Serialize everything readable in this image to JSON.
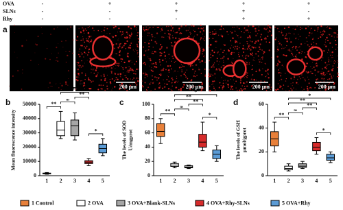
{
  "header": {
    "rows": [
      {
        "label": "OVA",
        "marks": [
          "-",
          "+",
          "+",
          "+",
          "+"
        ]
      },
      {
        "label": "SLNs",
        "marks": [
          "-",
          "-",
          "+",
          "+",
          "-"
        ]
      },
      {
        "label": "Rhy",
        "marks": [
          "-",
          "-",
          "-",
          "+",
          "+"
        ]
      }
    ]
  },
  "images": {
    "panel": "a",
    "scale_labels": [
      null,
      "200 μm",
      "200 μm",
      "200 μm",
      "200 μm"
    ]
  },
  "chart_data": [
    {
      "type": "box",
      "panel": "b",
      "ylabel": [
        "Mean fluorescence intensity"
      ],
      "categories": [
        "1",
        "2",
        "3",
        "4",
        "5"
      ],
      "colors": [
        "#e8803a",
        "#ffffff",
        "#a6a6a6",
        "#d62b2b",
        "#5b9bd5"
      ],
      "boxes": [
        {
          "min": 1000,
          "q1": 1300,
          "median": 1500,
          "q3": 1800,
          "max": 2200
        },
        {
          "min": 26000,
          "q1": 28000,
          "median": 32000,
          "q3": 38000,
          "max": 45000
        },
        {
          "min": 25000,
          "q1": 28000,
          "median": 35000,
          "q3": 39000,
          "max": 44000
        },
        {
          "min": 7000,
          "q1": 8500,
          "median": 9500,
          "q3": 10500,
          "max": 12000
        },
        {
          "min": 14000,
          "q1": 16000,
          "median": 19000,
          "q3": 22000,
          "max": 26000
        }
      ],
      "ylim": [
        0,
        50000
      ],
      "yticks": [
        0,
        10000,
        20000,
        30000,
        40000,
        50000
      ],
      "annotations": [
        {
          "label": "*",
          "groups": [
            "4",
            "5"
          ]
        },
        {
          "label": "**",
          "groups": [
            "1",
            "2"
          ]
        },
        {
          "label": "ns",
          "groups": [
            "2",
            "3"
          ]
        },
        {
          "label": "**",
          "groups": [
            "3",
            "4"
          ]
        },
        {
          "label": "**",
          "groups": [
            "2",
            "4"
          ]
        },
        {
          "label": "**",
          "groups": [
            "2",
            "5"
          ]
        }
      ]
    },
    {
      "type": "box",
      "panel": "c",
      "ylabel": [
        "The levels of SOD",
        "U/mgprot"
      ],
      "categories": [
        "1",
        "2",
        "3",
        "4",
        "5"
      ],
      "colors": [
        "#e8803a",
        "#ffffff",
        "#a6a6a6",
        "#d62b2b",
        "#5b9bd5"
      ],
      "boxes": [
        {
          "min": 45,
          "q1": 55,
          "median": 62,
          "q3": 73,
          "max": 80
        },
        {
          "min": 11,
          "q1": 13,
          "median": 15,
          "q3": 17,
          "max": 19
        },
        {
          "min": 10,
          "q1": 11,
          "median": 12,
          "q3": 14,
          "max": 15
        },
        {
          "min": 35,
          "q1": 40,
          "median": 47,
          "q3": 58,
          "max": 75
        },
        {
          "min": 20,
          "q1": 24,
          "median": 30,
          "q3": 36,
          "max": 42
        }
      ],
      "ylim": [
        0,
        100
      ],
      "yticks": [
        0,
        20,
        40,
        60,
        80,
        100
      ],
      "annotations": [
        {
          "label": "*",
          "groups": [
            "4",
            "5"
          ]
        },
        {
          "label": "**",
          "groups": [
            "1",
            "2"
          ]
        },
        {
          "label": "ns",
          "groups": [
            "2",
            "3"
          ]
        },
        {
          "label": "**",
          "groups": [
            "3",
            "4"
          ]
        },
        {
          "label": "**",
          "groups": [
            "2",
            "4"
          ]
        },
        {
          "label": "*",
          "groups": [
            "2",
            "5"
          ]
        }
      ]
    },
    {
      "type": "box",
      "panel": "d",
      "ylabel": [
        "The levels of GSH",
        "μmol/gprot"
      ],
      "categories": [
        "1",
        "2",
        "3",
        "4",
        "5"
      ],
      "colors": [
        "#e8803a",
        "#ffffff",
        "#a6a6a6",
        "#d62b2b",
        "#5b9bd5"
      ],
      "boxes": [
        {
          "min": 20,
          "q1": 25,
          "median": 31,
          "q3": 37,
          "max": 45
        },
        {
          "min": 4,
          "q1": 5,
          "median": 6,
          "q3": 8,
          "max": 10
        },
        {
          "min": 6,
          "q1": 7,
          "median": 8,
          "q3": 10,
          "max": 12
        },
        {
          "min": 18,
          "q1": 21,
          "median": 24,
          "q3": 28,
          "max": 32
        },
        {
          "min": 11,
          "q1": 13,
          "median": 15,
          "q3": 18,
          "max": 20
        }
      ],
      "ylim": [
        0,
        60
      ],
      "yticks": [
        0,
        20,
        40,
        60
      ],
      "annotations": [
        {
          "label": "*",
          "groups": [
            "4",
            "5"
          ]
        },
        {
          "label": "**",
          "groups": [
            "1",
            "2"
          ]
        },
        {
          "label": "ns",
          "groups": [
            "2",
            "3"
          ]
        },
        {
          "label": "**",
          "groups": [
            "3",
            "4"
          ]
        },
        {
          "label": "**",
          "groups": [
            "2",
            "4"
          ]
        },
        {
          "label": "*",
          "groups": [
            "2",
            "5"
          ]
        }
      ]
    }
  ],
  "legend": {
    "items": [
      {
        "label": "1 Control",
        "color": "#e8803a"
      },
      {
        "label": "2 OVA",
        "color": "#ffffff"
      },
      {
        "label": "3 OVA+Blank-SLNs",
        "color": "#a6a6a6"
      },
      {
        "label": "4 OVA+Rhy-SLNs",
        "color": "#d62b2b"
      },
      {
        "label": "5 OVA+Rhy",
        "color": "#5b9bd5"
      }
    ]
  }
}
